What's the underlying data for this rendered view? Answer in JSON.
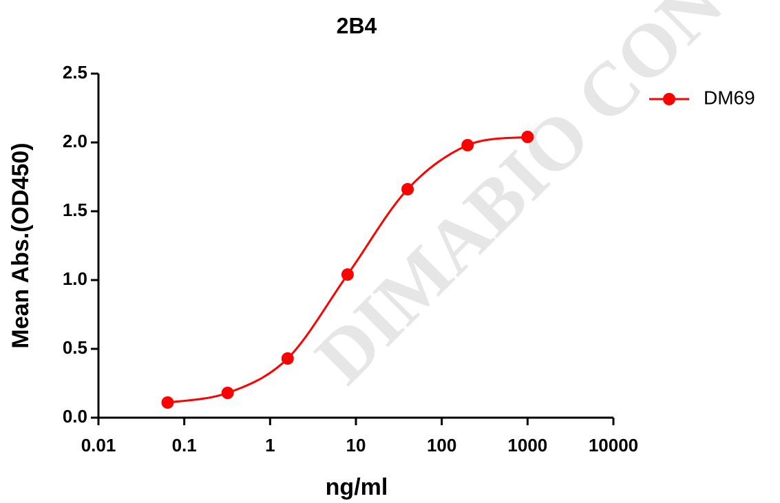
{
  "chart_data": {
    "type": "line",
    "title": "2B4",
    "xlabel": "ng/ml",
    "ylabel": "Mean Abs.(OD450)",
    "watermark": "DIMABIO CON",
    "x": [
      0.064,
      0.32,
      1.6,
      8,
      40,
      200,
      1000
    ],
    "series": [
      {
        "name": "DM69",
        "color": "#ff0000",
        "values": [
          0.11,
          0.18,
          0.43,
          1.04,
          1.66,
          1.98,
          2.04
        ]
      }
    ],
    "xscale": "log",
    "xlim": [
      0.01,
      10000
    ],
    "xticks": [
      0.01,
      0.1,
      1,
      10,
      100,
      1000,
      10000
    ],
    "ylim": [
      0,
      2.5
    ],
    "yticks": [
      {
        "value": 0,
        "label": "0.0"
      },
      0.5,
      {
        "value": 1,
        "label": "1.0"
      },
      1.5,
      {
        "value": 2,
        "label": "2.0"
      },
      2.5
    ],
    "grid": false,
    "legend": "right"
  }
}
